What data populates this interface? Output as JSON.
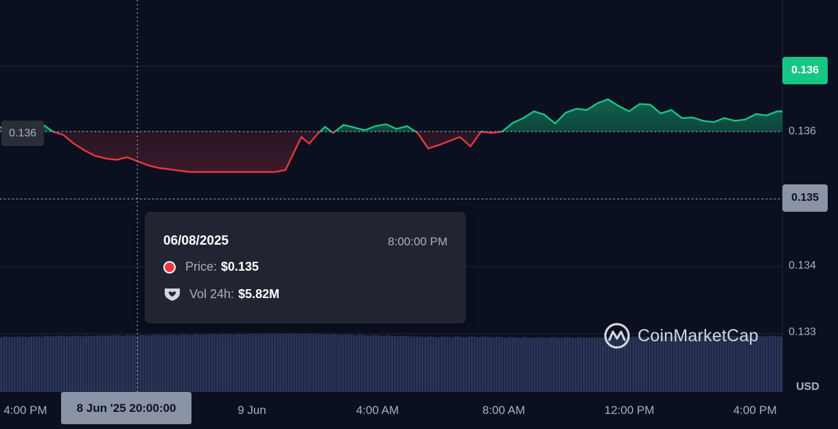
{
  "chart_data": {
    "type": "area",
    "currency": "USD",
    "y_ticks": [
      "0.133",
      "0.134",
      "0.135",
      "0.136",
      "0.136"
    ],
    "y_range": [
      0.1328,
      0.1371
    ],
    "reference_price": 0.136,
    "reference_label": "0.136",
    "current_price_label": "0.136",
    "hover_price_label": "0.135",
    "x_labels": [
      "4:00 PM",
      "9 Jun",
      "4:00 AM",
      "8:00 AM",
      "12:00 PM",
      "4:00 PM"
    ],
    "x_range_hours": [
      -5.3,
      24.3
    ],
    "x_label_hours": [
      -4,
      4,
      8,
      12,
      16,
      20
    ],
    "hover_x_label": "8 Jun '25 20:00:00",
    "hover_hour": -0.1,
    "price_series": {
      "hours": [
        -5.3,
        -4.9,
        -4.5,
        -4.1,
        -3.7,
        -3.3,
        -2.9,
        -2.5,
        -2.1,
        -1.7,
        -1.3,
        -0.9,
        -0.5,
        -0.1,
        0.3,
        0.7,
        1.1,
        1.5,
        1.9,
        2.3,
        2.7,
        3.1,
        3.5,
        3.9,
        4.3,
        4.7,
        5.1,
        5.5,
        6.1,
        6.4,
        6.7,
        7.0,
        7.3,
        7.7,
        8.1,
        8.5,
        8.9,
        9.3,
        9.7,
        10.1,
        10.5,
        10.9,
        11.3,
        11.7,
        12.1,
        12.5,
        12.9,
        13.3,
        13.7,
        14.1,
        14.5,
        14.9,
        15.3,
        15.7,
        16.1,
        16.5,
        16.9,
        17.3,
        17.7,
        18.1,
        18.5,
        18.9,
        19.3,
        19.7,
        20.1,
        20.5,
        20.9,
        21.3,
        21.7,
        22.1,
        22.5,
        22.9,
        23.3,
        23.7,
        24.1,
        24.3
      ],
      "values": [
        0.13606,
        0.1361,
        0.13604,
        0.13608,
        0.13611,
        0.136,
        0.13595,
        0.13582,
        0.13572,
        0.13564,
        0.1356,
        0.13558,
        0.13562,
        0.13556,
        0.1355,
        0.13546,
        0.13544,
        0.13542,
        0.1354,
        0.1354,
        0.1354,
        0.1354,
        0.1354,
        0.1354,
        0.1354,
        0.1354,
        0.1354,
        0.13543,
        0.13592,
        0.13582,
        0.13596,
        0.13607,
        0.13598,
        0.1361,
        0.13606,
        0.13602,
        0.13608,
        0.13611,
        0.13604,
        0.13608,
        0.13598,
        0.13575,
        0.1358,
        0.13586,
        0.13592,
        0.13578,
        0.136,
        0.13598,
        0.136,
        0.13613,
        0.1362,
        0.1363,
        0.13625,
        0.13612,
        0.13628,
        0.13634,
        0.13632,
        0.13642,
        0.13648,
        0.13638,
        0.1363,
        0.13641,
        0.1364,
        0.13627,
        0.13632,
        0.1362,
        0.13621,
        0.13616,
        0.13614,
        0.1362,
        0.13616,
        0.13618,
        0.13626,
        0.13624,
        0.1363,
        0.1363
      ]
    },
    "volume_series": {
      "note_units": "relative",
      "values": [
        0.8,
        0.8,
        0.81,
        0.81,
        0.82,
        0.82,
        0.83,
        0.83,
        0.84,
        0.84,
        0.85,
        0.85,
        0.84,
        0.83,
        0.82,
        0.81,
        0.8,
        0.8,
        0.8,
        0.79,
        0.79,
        0.79,
        0.79,
        0.8,
        0.8,
        0.81,
        0.81,
        0.81,
        0.81,
        0.81
      ]
    },
    "colors": {
      "up": "#16c784",
      "down": "#ea3943",
      "volume": "#2b3458",
      "grid": "#232838",
      "background": "#0b1020"
    }
  },
  "tooltip": {
    "date": "06/08/2025",
    "time": "8:00:00 PM",
    "price_label": "Price:",
    "price_value": "$0.135",
    "volume_label": "Vol 24h:",
    "volume_value": "$5.82M"
  },
  "brand": {
    "name": "CoinMarketCap"
  },
  "icons": {
    "price": "red-dot-icon",
    "volume": "volume-shield-icon",
    "logo": "coinmarketcap-logo-icon"
  }
}
